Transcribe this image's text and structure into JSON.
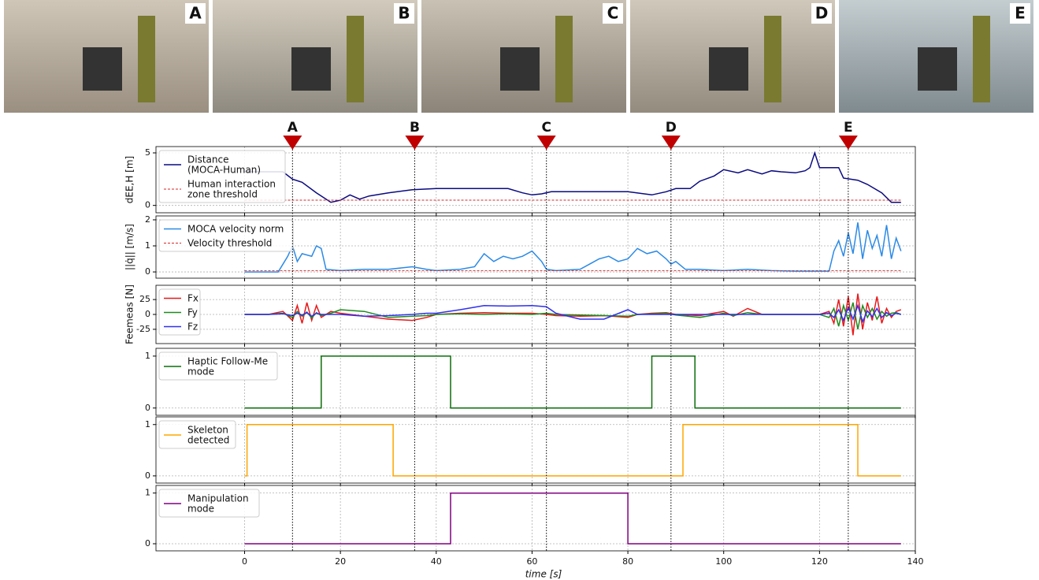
{
  "photos": [
    "A",
    "B",
    "C",
    "D",
    "E"
  ],
  "events": {
    "labels": [
      "A",
      "B",
      "C",
      "D",
      "E"
    ],
    "x": [
      10,
      35.5,
      63,
      89,
      126
    ]
  },
  "chart_data": [
    {
      "type": "line",
      "ylabel": "dEE,H [m]",
      "xlim": [
        -18.5,
        140
      ],
      "xticks": [
        0,
        20,
        40,
        60,
        80,
        100,
        120,
        140
      ],
      "ylim": [
        -0.7,
        5.6
      ],
      "yticks": [
        0,
        5
      ],
      "grid": true,
      "legend": "upper left",
      "series": [
        {
          "name": "Distance (MOCA-Human)",
          "color": "#0a0a80",
          "style": "solid",
          "x": [
            0,
            8,
            10,
            12,
            15,
            18,
            20,
            22,
            24,
            26,
            30,
            35,
            40,
            50,
            55,
            58,
            60,
            62,
            64,
            70,
            80,
            85,
            88,
            90,
            93,
            95,
            98,
            100,
            103,
            105,
            108,
            110,
            112,
            115,
            117,
            118,
            119,
            120,
            124,
            125,
            128,
            130,
            133,
            135,
            137
          ],
          "values": [
            3.2,
            3.2,
            2.5,
            2.2,
            1.2,
            0.3,
            0.5,
            1.0,
            0.6,
            0.9,
            1.2,
            1.5,
            1.6,
            1.6,
            1.6,
            1.2,
            1.0,
            1.1,
            1.3,
            1.3,
            1.3,
            1.0,
            1.3,
            1.6,
            1.6,
            2.3,
            2.8,
            3.4,
            3.1,
            3.4,
            3.0,
            3.3,
            3.2,
            3.1,
            3.3,
            3.6,
            5.0,
            3.6,
            3.6,
            2.6,
            2.4,
            2.0,
            1.2,
            0.3,
            0.3
          ]
        },
        {
          "name": "Human interaction zone threshold",
          "color": "#d62728",
          "style": "dashed",
          "x": [
            0,
            137
          ],
          "values": [
            0.5,
            0.5
          ]
        }
      ]
    },
    {
      "type": "line",
      "ylabel": "||q̇|| [m/s]",
      "xlim": [
        -18.5,
        140
      ],
      "xticks": [
        0,
        20,
        40,
        60,
        80,
        100,
        120,
        140
      ],
      "ylim": [
        -0.24,
        2.15
      ],
      "yticks": [
        0,
        1,
        2
      ],
      "grid": true,
      "legend": "upper left",
      "series": [
        {
          "name": "MOCA velocity norm",
          "color": "#2b8ae6",
          "style": "solid",
          "x": [
            0,
            7,
            8,
            9,
            10,
            11,
            12,
            14,
            15,
            16,
            17,
            20,
            25,
            30,
            35,
            38,
            40,
            45,
            48,
            50,
            52,
            54,
            56,
            58,
            60,
            62,
            63,
            65,
            70,
            72,
            74,
            76,
            78,
            80,
            82,
            84,
            86,
            88,
            89,
            90,
            92,
            95,
            100,
            105,
            110,
            115,
            122,
            123,
            124,
            125,
            126,
            127,
            128,
            129,
            130,
            131,
            132,
            133,
            134,
            135,
            136,
            137
          ],
          "values": [
            0,
            0,
            0.3,
            0.6,
            1.0,
            0.4,
            0.7,
            0.6,
            1.0,
            0.9,
            0.1,
            0.05,
            0.1,
            0.1,
            0.2,
            0.1,
            0.05,
            0.1,
            0.2,
            0.7,
            0.4,
            0.6,
            0.5,
            0.6,
            0.8,
            0.4,
            0.1,
            0.05,
            0.1,
            0.3,
            0.5,
            0.6,
            0.4,
            0.5,
            0.9,
            0.7,
            0.8,
            0.5,
            0.3,
            0.4,
            0.1,
            0.1,
            0.05,
            0.1,
            0.05,
            0.03,
            0.03,
            0.8,
            1.2,
            0.6,
            1.5,
            0.7,
            1.9,
            0.5,
            1.6,
            0.9,
            1.4,
            0.6,
            1.8,
            0.5,
            1.3,
            0.8
          ]
        },
        {
          "name": "Velocity threshold",
          "color": "#d62728",
          "style": "dashed",
          "x": [
            0,
            137
          ],
          "values": [
            0.05,
            0.05
          ]
        }
      ]
    },
    {
      "type": "line",
      "ylabel": "Feemeas [N]",
      "xlim": [
        -18.5,
        140
      ],
      "xticks": [
        0,
        20,
        40,
        60,
        80,
        100,
        120,
        140
      ],
      "ylim": [
        -49,
        49
      ],
      "yticks": [
        -25,
        0,
        25
      ],
      "grid": true,
      "legend": "upper left",
      "x": [
        0,
        5,
        8,
        10,
        11,
        12,
        13,
        14,
        15,
        16,
        18,
        20,
        25,
        30,
        35,
        38,
        40,
        45,
        50,
        55,
        60,
        63,
        65,
        70,
        75,
        80,
        82,
        85,
        88,
        90,
        95,
        100,
        102,
        105,
        108,
        110,
        120,
        122,
        123,
        124,
        125,
        126,
        127,
        128,
        129,
        130,
        131,
        132,
        133,
        134,
        135,
        136,
        137
      ],
      "series": [
        {
          "name": "Fx",
          "color": "#e8191b",
          "style": "solid",
          "values": [
            0,
            0,
            5,
            -10,
            15,
            -15,
            20,
            -10,
            15,
            -5,
            5,
            2,
            -3,
            -8,
            -10,
            -5,
            0,
            2,
            3,
            2,
            2,
            0,
            -2,
            -3,
            -2,
            -5,
            0,
            2,
            3,
            0,
            -2,
            5,
            -3,
            10,
            0,
            0,
            0,
            5,
            -15,
            25,
            -20,
            30,
            -35,
            35,
            -25,
            20,
            -10,
            30,
            -15,
            10,
            -5,
            5,
            8
          ]
        },
        {
          "name": "Fy",
          "color": "#1f8a1f",
          "style": "solid",
          "values": [
            0,
            0,
            2,
            -5,
            5,
            -3,
            4,
            -6,
            3,
            -2,
            2,
            8,
            5,
            -5,
            -3,
            -2,
            0,
            1,
            0,
            1,
            0,
            2,
            0,
            -1,
            -2,
            -3,
            0,
            1,
            2,
            -1,
            -5,
            2,
            -2,
            3,
            0,
            0,
            0,
            -5,
            10,
            -20,
            15,
            -10,
            20,
            -25,
            15,
            -5,
            10,
            -8,
            5,
            -3,
            2,
            3,
            0
          ]
        },
        {
          "name": "Fz",
          "color": "#3030f0",
          "style": "solid",
          "values": [
            0,
            0,
            1,
            -2,
            2,
            -1,
            3,
            -3,
            2,
            0,
            0,
            0,
            -3,
            -2,
            0,
            2,
            2,
            8,
            15,
            14,
            15,
            13,
            2,
            -8,
            -8,
            8,
            0,
            0,
            0,
            0,
            0,
            0,
            0,
            0,
            0,
            0,
            0,
            2,
            -5,
            8,
            -10,
            12,
            -8,
            15,
            -12,
            6,
            -4,
            10,
            -5,
            3,
            -2,
            2,
            0
          ]
        }
      ]
    },
    {
      "type": "line",
      "xlim": [
        -18.5,
        140
      ],
      "xticks": [
        0,
        20,
        40,
        60,
        80,
        100,
        120,
        140
      ],
      "ylim": [
        -0.14,
        1.15
      ],
      "yticks": [
        0,
        1
      ],
      "grid": true,
      "legend": "upper left",
      "series": [
        {
          "name": "Haptic Follow-Me mode",
          "color": "#0a6e0a",
          "style": "solid",
          "x": [
            0,
            16,
            16,
            43,
            43,
            85,
            85,
            94,
            94,
            137
          ],
          "values": [
            0,
            0,
            1,
            1,
            0,
            0,
            1,
            1,
            0,
            0
          ]
        }
      ]
    },
    {
      "type": "line",
      "xlim": [
        -18.5,
        140
      ],
      "xticks": [
        0,
        20,
        40,
        60,
        80,
        100,
        120,
        140
      ],
      "ylim": [
        -0.14,
        1.15
      ],
      "yticks": [
        0,
        1
      ],
      "grid": true,
      "legend": "upper left",
      "series": [
        {
          "name": "Skeleton detected",
          "color": "#ffa500",
          "style": "solid",
          "x": [
            0,
            0.5,
            0.5,
            31,
            31,
            91.5,
            91.5,
            128,
            128,
            137
          ],
          "values": [
            0,
            0,
            1,
            1,
            0,
            0,
            1,
            1,
            0,
            0
          ]
        }
      ]
    },
    {
      "type": "line",
      "xlabel": "time [s]",
      "xlim": [
        -18.5,
        140
      ],
      "xticks": [
        0,
        20,
        40,
        60,
        80,
        100,
        120,
        140
      ],
      "ylim": [
        -0.14,
        1.15
      ],
      "yticks": [
        0,
        1
      ],
      "grid": true,
      "legend": "upper left",
      "series": [
        {
          "name": "Manipulation mode",
          "color": "#800080",
          "style": "solid",
          "x": [
            0,
            43,
            43,
            80,
            80,
            137
          ],
          "values": [
            0,
            0,
            1,
            1,
            0,
            0
          ]
        }
      ]
    }
  ]
}
